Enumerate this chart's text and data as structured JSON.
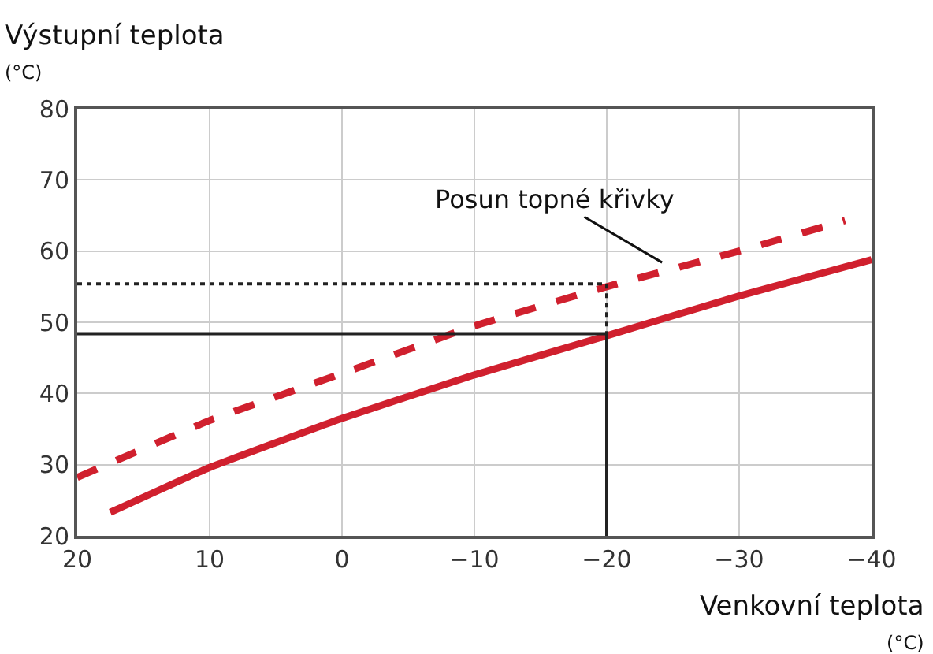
{
  "chart_data": {
    "type": "line",
    "xlabel": "Venkovní teplota\n(°C)",
    "ylabel": "Výstupní teplota\n(°C)",
    "xlim": [
      20,
      -40
    ],
    "ylim": [
      20,
      80
    ],
    "xticks": [
      20,
      10,
      0,
      {
        "value": -10,
        "label": "−10"
      },
      {
        "value": -20,
        "label": "−20"
      },
      {
        "value": -30,
        "label": "−30"
      },
      {
        "value": -40,
        "label": "−40"
      }
    ],
    "yticks": [
      20,
      30,
      40,
      50,
      60,
      70,
      80
    ],
    "grid": true,
    "marker": "none",
    "annotations": [
      {
        "text": "Posun topné křivky",
        "x": -25,
        "y": 57.5
      }
    ],
    "series": [
      {
        "color": "#d0202e",
        "line_style": "solid",
        "x": [
          17.5,
          10,
          0,
          -10,
          -20,
          -30,
          -40
        ],
        "values": [
          23.3,
          29.6,
          36.5,
          42.6,
          48.1,
          53.7,
          58.8
        ]
      },
      {
        "color": "#d0202e",
        "line_style": "dashed",
        "x": [
          20,
          10,
          0,
          -10,
          -20,
          -30,
          -38
        ],
        "values": [
          28.2,
          36.2,
          42.8,
          49.5,
          55,
          60,
          64.3
        ]
      },
      {
        "color": "#222222",
        "line_style": "solid",
        "x": [
          20,
          -20,
          -20
        ],
        "values": [
          48.4,
          48.4,
          20
        ]
      },
      {
        "color": "#222222",
        "line_style": "dotted",
        "x": [
          20,
          -20,
          -20
        ],
        "values": [
          55.4,
          55.4,
          48.4
        ]
      }
    ]
  }
}
